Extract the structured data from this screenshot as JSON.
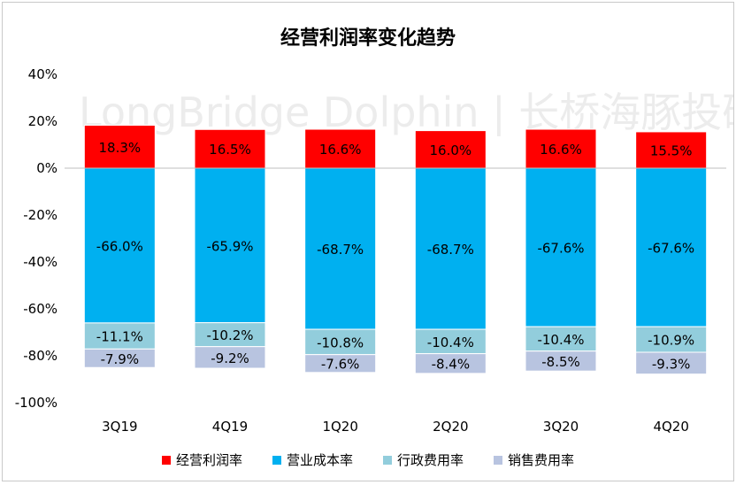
{
  "chart_data": {
    "type": "bar",
    "stacked": true,
    "title": "经营利润率变化趋势",
    "watermark": "LongBridge Dolphin | 长桥海豚投研",
    "categories": [
      "3Q19",
      "4Q19",
      "1Q20",
      "2Q20",
      "3Q20",
      "4Q20"
    ],
    "ylim": [
      -100,
      40
    ],
    "yticks": [
      40,
      20,
      0,
      -20,
      -40,
      -60,
      -80,
      -100
    ],
    "ytick_labels": [
      "40%",
      "20%",
      "0%",
      "-20%",
      "-40%",
      "-60%",
      "-80%",
      "-100%"
    ],
    "grid": false,
    "legend_position": "bottom",
    "series": [
      {
        "name": "经营利润率",
        "color": "#ff0000",
        "values": [
          18.3,
          16.5,
          16.6,
          16.0,
          16.6,
          15.5
        ],
        "labels": [
          "18.3%",
          "16.5%",
          "16.6%",
          "16.0%",
          "16.6%",
          "15.5%"
        ]
      },
      {
        "name": "营业成本率",
        "color": "#00b0f0",
        "values": [
          -66.0,
          -65.9,
          -68.7,
          -68.7,
          -67.6,
          -67.6
        ],
        "labels": [
          "-66.0%",
          "-65.9%",
          "-68.7%",
          "-68.7%",
          "-67.6%",
          "-67.6%"
        ]
      },
      {
        "name": "行政费用率",
        "color": "#92cddc",
        "values": [
          -11.1,
          -10.2,
          -10.8,
          -10.4,
          -10.4,
          -10.9
        ],
        "labels": [
          "-11.1%",
          "-10.2%",
          "-10.8%",
          "-10.4%",
          "-10.4%",
          "-10.9%"
        ]
      },
      {
        "name": "销售费用率",
        "color": "#b8c4e0",
        "values": [
          -7.9,
          -9.2,
          -7.6,
          -8.4,
          -8.5,
          -9.3
        ],
        "labels": [
          "-7.9%",
          "-9.2%",
          "-7.6%",
          "-8.4%",
          "-8.5%",
          "-9.3%"
        ]
      }
    ]
  }
}
